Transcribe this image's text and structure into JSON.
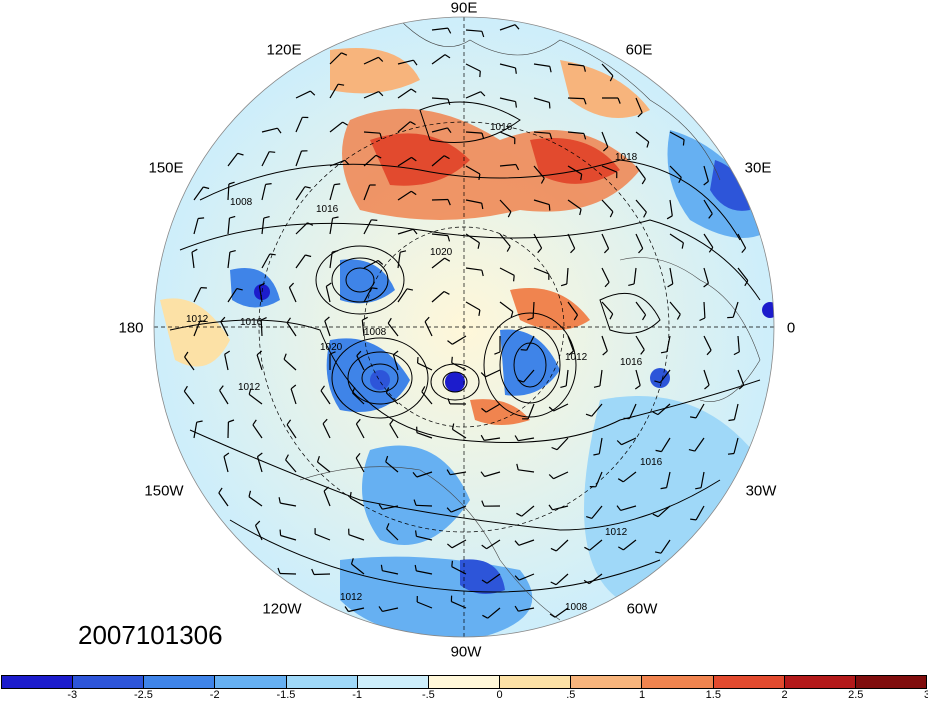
{
  "timestamp": "2007101306",
  "longitude_labels": {
    "lon_90e": "90E",
    "lon_120e": "120E",
    "lon_60e": "60E",
    "lon_150e": "150E",
    "lon_30e": "30E",
    "lon_180": "180",
    "lon_0": "0",
    "lon_150w": "150W",
    "lon_30w": "30W",
    "lon_120w": "120W",
    "lon_60w": "60W",
    "lon_90w": "90W"
  },
  "contour_labels": [
    "1016",
    "1018",
    "1008",
    "1016",
    "1020",
    "1016",
    "1012",
    "1008",
    "1020",
    "1012",
    "1016",
    "1012",
    "1016",
    "1012",
    "1012",
    "1008"
  ],
  "colorbar": {
    "colors": [
      "#1c1ccc",
      "#2d55d9",
      "#3f84e8",
      "#66b0f2",
      "#9fd8f8",
      "#cdeefb",
      "#fff7d9",
      "#fce1a6",
      "#f7b47c",
      "#f0844f",
      "#e24a2e",
      "#b3191a",
      "#800d0d"
    ],
    "tick_labels": [
      "-3",
      "-2.5",
      "-2",
      "-1.5",
      "-1",
      "-.5",
      "0",
      ".5",
      "1",
      "1.5",
      "2",
      "2.5",
      "3"
    ]
  }
}
